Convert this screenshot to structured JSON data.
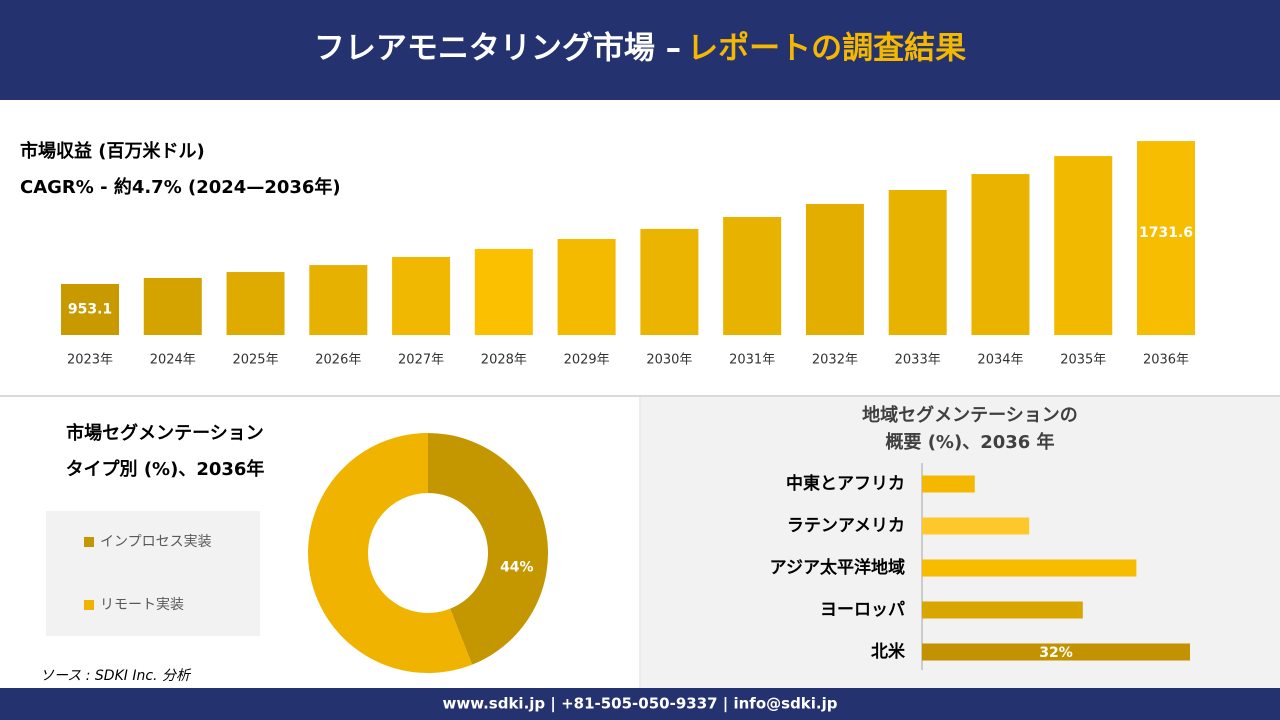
{
  "header": {
    "title": "フレアモニタリング市場 –",
    "title_highlight": "レポートの調査結果"
  },
  "footer": {
    "contact": "www.sdki.jp | +81-505-050-9337 | info@sdki.jp"
  },
  "source": "ソース : SDKI Inc. 分析",
  "chart_data": [
    {
      "type": "bar",
      "title": "市場収益 (百万米ドル)",
      "subtitle": "CAGR% - 約4.7% (2024—2036年)",
      "categories": [
        "2023年",
        "2024年",
        "2025年",
        "2026年",
        "2027年",
        "2028年",
        "2029年",
        "2030年",
        "2031年",
        "2032年",
        "2033年",
        "2034年",
        "2035年",
        "2036年"
      ],
      "values": [
        953.1,
        986,
        1018,
        1056,
        1100,
        1144,
        1198,
        1253,
        1318,
        1389,
        1465,
        1552,
        1650,
        1731.6
      ],
      "value_labels": [
        "953.1",
        null,
        null,
        null,
        null,
        null,
        null,
        null,
        null,
        null,
        null,
        null,
        null,
        "1731.6"
      ],
      "colors": [
        "#c89a00",
        "#d4a300",
        "#dfab00",
        "#e6b100",
        "#f0b800",
        "#fbc100",
        "#f3ba00",
        "#ebb400",
        "#e8b200",
        "#e3ae00",
        "#e8b200",
        "#eab300",
        "#f1b900",
        "#f7bd00"
      ],
      "ylim": [
        675,
        1732
      ]
    },
    {
      "type": "donut",
      "title": "市場セグメンテーション",
      "subtitle": "タイプ別 (%)、2036年",
      "categories": [
        "インプロセス実装",
        "リモート実装"
      ],
      "values": [
        44,
        56
      ],
      "value_labels": [
        "44%",
        null
      ],
      "colors": [
        "#c49600",
        "#f0b400"
      ]
    },
    {
      "type": "barh",
      "title": "地域セグメンテーションの",
      "subtitle": "概要 (%)、2036 年",
      "categories": [
        "中東とアフリカ",
        "ラテンアメリカ",
        "アジア太平洋地域",
        "ヨーロッパ",
        "北米"
      ],
      "values": [
        6.3,
        12.8,
        25.6,
        19.2,
        32
      ],
      "value_labels": [
        null,
        null,
        null,
        null,
        "32%"
      ],
      "colors": [
        "#f5b800",
        "#ffc82a",
        "#f7bb00",
        "#d9a600",
        "#c39200"
      ],
      "xlim": [
        0,
        32
      ]
    }
  ]
}
